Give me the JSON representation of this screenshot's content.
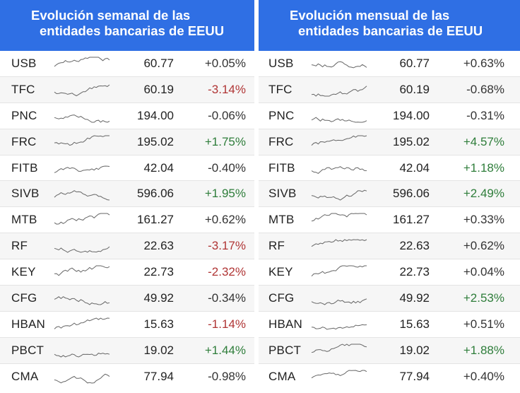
{
  "colors": {
    "header": "#2f6fe4",
    "positive": "#2e7d3a",
    "negative": "#b03535",
    "neutral": "#333333",
    "spark": "#666666"
  },
  "chart_data": [
    {
      "type": "table",
      "title": "Evolución semanal de las entidades bancarias de EEUU",
      "title_lines": [
        "Evolución semanal de las",
        "entidades bancarias de EEUU"
      ],
      "rows": [
        {
          "ticker": "USB",
          "price": "60.77",
          "change": "+0.05%",
          "value": 0.05
        },
        {
          "ticker": "TFC",
          "price": "60.19",
          "change": "-3.14%",
          "value": -3.14
        },
        {
          "ticker": "PNC",
          "price": "194.00",
          "change": "-0.06%",
          "value": -0.06
        },
        {
          "ticker": "FRC",
          "price": "195.02",
          "change": "+1.75%",
          "value": 1.75
        },
        {
          "ticker": "FITB",
          "price": "42.04",
          "change": "-0.40%",
          "value": -0.4
        },
        {
          "ticker": "SIVB",
          "price": "596.06",
          "change": "+1.95%",
          "value": 1.95
        },
        {
          "ticker": "MTB",
          "price": "161.27",
          "change": "+0.62%",
          "value": 0.62
        },
        {
          "ticker": "RF",
          "price": "22.63",
          "change": "-3.17%",
          "value": -3.17
        },
        {
          "ticker": "KEY",
          "price": "22.73",
          "change": "-2.32%",
          "value": -2.32
        },
        {
          "ticker": "CFG",
          "price": "49.92",
          "change": "-0.34%",
          "value": -0.34
        },
        {
          "ticker": "HBAN",
          "price": "15.63",
          "change": "-1.14%",
          "value": -1.14
        },
        {
          "ticker": "PBCT",
          "price": "19.02",
          "change": "+1.44%",
          "value": 1.44
        },
        {
          "ticker": "CMA",
          "price": "77.94",
          "change": "-0.98%",
          "value": -0.98
        }
      ]
    },
    {
      "type": "table",
      "title": "Evolución mensual de las entidades bancarias de EEUU",
      "title_lines": [
        "Evolución mensual de las",
        "entidades bancarias de EEUU"
      ],
      "rows": [
        {
          "ticker": "USB",
          "price": "60.77",
          "change": "+0.63%",
          "value": 0.63
        },
        {
          "ticker": "TFC",
          "price": "60.19",
          "change": "-0.68%",
          "value": -0.68
        },
        {
          "ticker": "PNC",
          "price": "194.00",
          "change": "-0.31%",
          "value": -0.31
        },
        {
          "ticker": "FRC",
          "price": "195.02",
          "change": "+4.57%",
          "value": 4.57
        },
        {
          "ticker": "FITB",
          "price": "42.04",
          "change": "+1.18%",
          "value": 1.18
        },
        {
          "ticker": "SIVB",
          "price": "596.06",
          "change": "+2.49%",
          "value": 2.49
        },
        {
          "ticker": "MTB",
          "price": "161.27",
          "change": "+0.33%",
          "value": 0.33
        },
        {
          "ticker": "RF",
          "price": "22.63",
          "change": "+0.62%",
          "value": 0.62
        },
        {
          "ticker": "KEY",
          "price": "22.73",
          "change": "+0.04%",
          "value": 0.04
        },
        {
          "ticker": "CFG",
          "price": "49.92",
          "change": "+2.53%",
          "value": 2.53
        },
        {
          "ticker": "HBAN",
          "price": "15.63",
          "change": "+0.51%",
          "value": 0.51
        },
        {
          "ticker": "PBCT",
          "price": "19.02",
          "change": "+1.88%",
          "value": 1.88
        },
        {
          "ticker": "CMA",
          "price": "77.94",
          "change": "+0.40%",
          "value": 0.4
        }
      ]
    }
  ]
}
